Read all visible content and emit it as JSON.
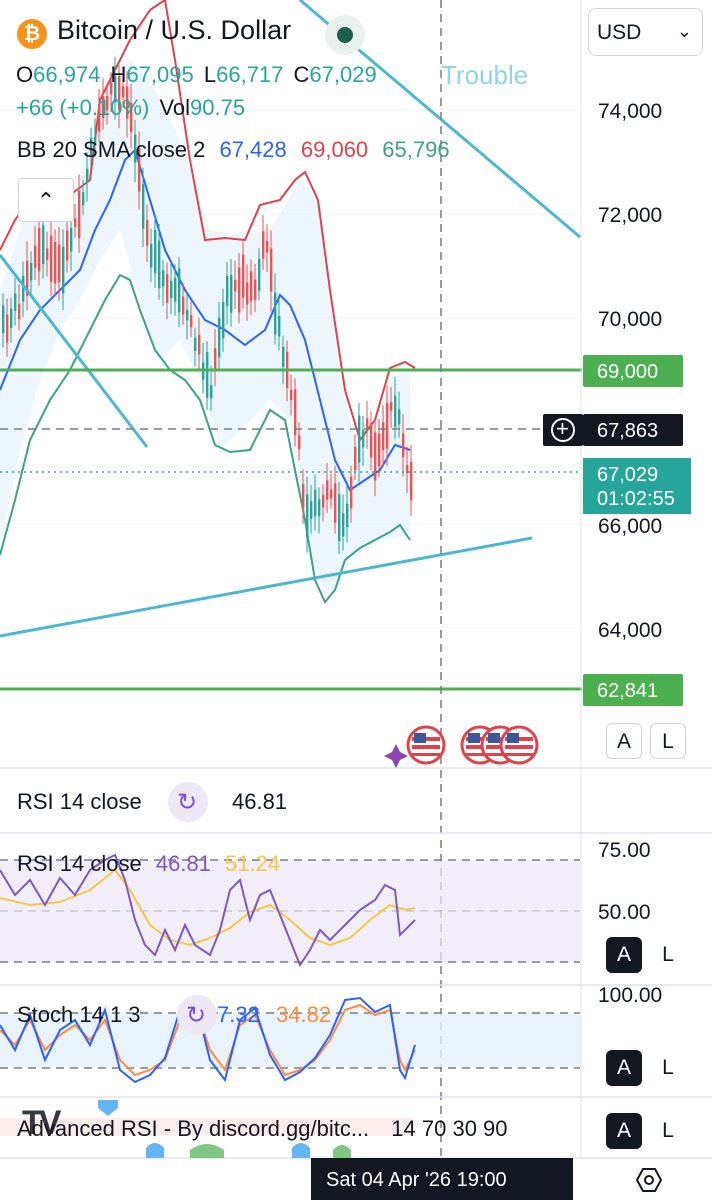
{
  "header": {
    "title": "Bitcoin / U.S. Dollar",
    "logo_symbol": "₿",
    "currency": "USD",
    "ohlc": {
      "open_label": "O",
      "open": "66,974",
      "high_label": "H",
      "high": "67,095",
      "low_label": "L",
      "low": "66,717",
      "close_label": "C",
      "close": "67,029"
    },
    "annotation": "Trouble",
    "change": "+66 (+0.10%)",
    "vol_label": "Vol",
    "vol": "90.75"
  },
  "bb": {
    "label": "BB 20 SMA close 2",
    "basis": "67,428",
    "upper": "69,060",
    "lower": "65,796"
  },
  "price_axis": {
    "ticks": [
      "74,000",
      "72,000",
      "70,000",
      "66,000",
      "64,000"
    ],
    "level_high": "69,000",
    "crosshair": "67,863",
    "last_price": "67,029",
    "countdown": "01:02:55",
    "level_low": "62,841"
  },
  "scale_buttons": {
    "auto": "A",
    "log": "L"
  },
  "rsi_legend": {
    "label": "RSI 14 close",
    "value": "46.81"
  },
  "rsi_pane": {
    "label": "RSI 14 close",
    "value": "46.81",
    "ma_value": "51.24",
    "ticks": [
      "75.00",
      "50.00"
    ]
  },
  "stoch_pane": {
    "label": "Stoch 14 1 3",
    "k": "37.32",
    "d": "34.82",
    "ticks": [
      "100.00"
    ]
  },
  "adv_rsi": {
    "label": "Advanced RSI - By discord.gg/bitc...",
    "params": "14 70 30 90"
  },
  "time_axis": {
    "crosshair": "Sat 04 Apr '26   19:00"
  },
  "colors": {
    "bull": "#26a69a",
    "bear": "#ef5350",
    "bb_basis": "#2962ff",
    "bb_upper": "#e0424b",
    "bb_lower": "#3aa38a",
    "trendline": "#4bb8d0",
    "level": "#4caf50"
  }
}
